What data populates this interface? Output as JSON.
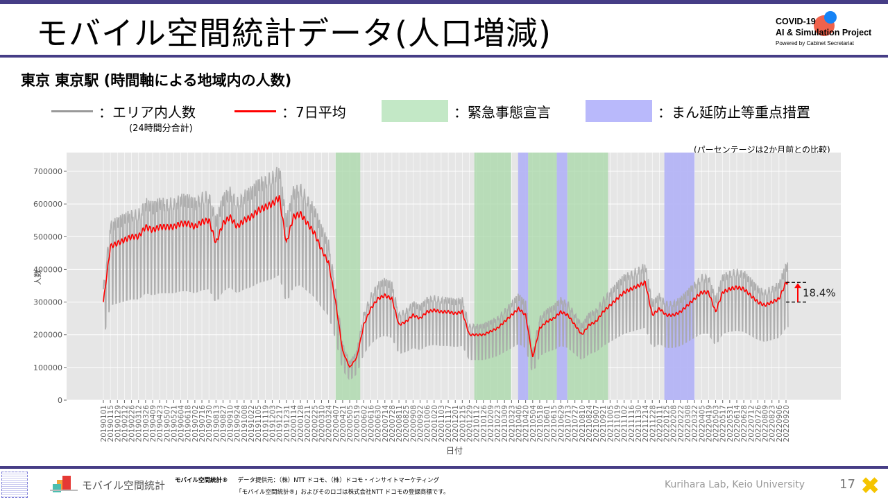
{
  "slide": {
    "title": "モバイル空間統計データ(人口増減)",
    "subtitle": "東京 東京駅 (時間軸による地域内の人数)",
    "page_number": "17",
    "credit": "Kurihara Lab, Keio University"
  },
  "logo": {
    "line1": "COVID-19",
    "line2": "AI & Simulation Project",
    "line3": "Powered by Cabinet Secretariat"
  },
  "legend": {
    "daily": "：エリア内人数",
    "daily_sub": "(24時間分合計)",
    "ma": "：7日平均",
    "emergency": "：緊急事態宣言",
    "semi": "：まん延防止等重点措置"
  },
  "colors": {
    "daily": "#a9a9a9",
    "ma": "#ff0000",
    "emergency": "#a8d8a8",
    "semi": "#b4b4f5",
    "plot_bg": "#e6e6e6",
    "bar": "#463d86"
  },
  "footer": {
    "mobile_logo_text": "モバイル空間統計",
    "brand": "モバイル空間統計®",
    "provider": "データ提供元：（株）NTT ドコモ、（株）ドコモ・インサイトマーケティング",
    "trademark": "「モバイル空間統計®」およびそのロゴは株式会社NTT ドコモの登録商標です。"
  },
  "chart_data": {
    "type": "line",
    "title": "東京 東京駅 (時間軸による地域内の人数)",
    "note": "(パーセンテージは2か月前との比較)",
    "xlabel": "日付",
    "ylabel": "人数",
    "ylim": [
      0,
      750000
    ],
    "yticks": [
      "0",
      "100000",
      "200000",
      "300000",
      "400000",
      "500000",
      "600000",
      "700000"
    ],
    "grid": true,
    "x_start": "2019-01-01",
    "x_end": "2022-09-24",
    "xticks": [
      "20190101",
      "20190115",
      "20190129",
      "20190212",
      "20190226",
      "20190312",
      "20190326",
      "20190409",
      "20190423",
      "20190507",
      "20190521",
      "20190604",
      "20190618",
      "20190702",
      "20190716",
      "20190730",
      "20190813",
      "20190827",
      "20190910",
      "20190924",
      "20191008",
      "20191022",
      "20191105",
      "20191119",
      "20191203",
      "20191217",
      "20191231",
      "20200114",
      "20200128",
      "20200211",
      "20200225",
      "20200310",
      "20200324",
      "20200407",
      "20200421",
      "20200505",
      "20200519",
      "20200602",
      "20200616",
      "20200630",
      "20200714",
      "20200728",
      "20200811",
      "20200825",
      "20200908",
      "20200922",
      "20201006",
      "20201020",
      "20201103",
      "20201117",
      "20201201",
      "20201215",
      "20201229",
      "20210112",
      "20210126",
      "20210209",
      "20210223",
      "20210309",
      "20210323",
      "20210406",
      "20210420",
      "20210504",
      "20210518",
      "20210601",
      "20210615",
      "20210629",
      "20210713",
      "20210727",
      "20210810",
      "20210824",
      "20210907",
      "20210921",
      "20211005",
      "20211019",
      "20211102",
      "20211116",
      "20211130",
      "20211214",
      "20211228",
      "20220111",
      "20220125",
      "20220208",
      "20220222",
      "20220308",
      "20220322",
      "20220405",
      "20220419",
      "20220503",
      "20220517",
      "20220531",
      "20220614",
      "20220628",
      "20220712",
      "20220726",
      "20220809",
      "20220823",
      "20220906",
      "20220920"
    ],
    "series": [
      {
        "name": "7日平均",
        "values_at_xticks": [
          300000,
          470000,
          480000,
          490000,
          500000,
          500000,
          530000,
          520000,
          530000,
          530000,
          530000,
          540000,
          540000,
          530000,
          545000,
          550000,
          480000,
          540000,
          560000,
          530000,
          550000,
          560000,
          580000,
          590000,
          600000,
          620000,
          480000,
          560000,
          570000,
          540000,
          510000,
          460000,
          420000,
          300000,
          150000,
          100000,
          130000,
          230000,
          280000,
          310000,
          320000,
          310000,
          230000,
          240000,
          260000,
          250000,
          270000,
          275000,
          270000,
          270000,
          265000,
          270000,
          200000,
          200000,
          200000,
          210000,
          220000,
          240000,
          260000,
          280000,
          260000,
          130000,
          220000,
          240000,
          250000,
          270000,
          260000,
          230000,
          200000,
          230000,
          240000,
          270000,
          290000,
          310000,
          330000,
          340000,
          350000,
          360000,
          260000,
          280000,
          260000,
          260000,
          270000,
          290000,
          310000,
          330000,
          330000,
          270000,
          330000,
          340000,
          345000,
          340000,
          320000,
          300000,
          290000,
          300000,
          310000,
          360000
        ]
      }
    ],
    "periods": [
      {
        "type": "emergency",
        "start": "2020-04-07",
        "end": "2020-05-25"
      },
      {
        "type": "emergency",
        "start": "2021-01-08",
        "end": "2021-03-21"
      },
      {
        "type": "semi",
        "start": "2021-04-05",
        "end": "2021-04-24"
      },
      {
        "type": "emergency",
        "start": "2021-04-25",
        "end": "2021-06-20"
      },
      {
        "type": "semi",
        "start": "2021-06-21",
        "end": "2021-07-11"
      },
      {
        "type": "emergency",
        "start": "2021-07-12",
        "end": "2021-09-30"
      },
      {
        "type": "semi",
        "start": "2022-01-21",
        "end": "2022-03-21"
      }
    ],
    "annotation": {
      "text": "18.4%",
      "from": 300000,
      "to": 360000
    }
  }
}
